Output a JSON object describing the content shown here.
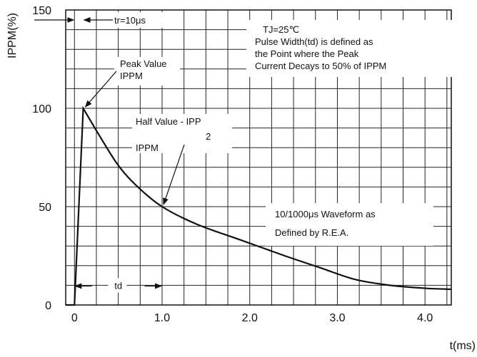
{
  "chart_data": {
    "type": "line",
    "title": "",
    "xlabel": "t(ms)",
    "ylabel": "IPPM(%)",
    "xlim": [
      -0.1,
      4.3
    ],
    "ylim": [
      0,
      150
    ],
    "grid": true,
    "x_ticks": [
      {
        "value": 0,
        "label": "0"
      },
      {
        "value": 1,
        "label": "1.0"
      },
      {
        "value": 2,
        "label": "2.0"
      },
      {
        "value": 3,
        "label": "3.0"
      },
      {
        "value": 4,
        "label": "4.0"
      }
    ],
    "y_ticks": [
      {
        "value": 0,
        "label": "0"
      },
      {
        "value": 50,
        "label": "50"
      },
      {
        "value": 100,
        "label": "100"
      },
      {
        "value": 150,
        "label": "150"
      }
    ],
    "series": [
      {
        "name": "",
        "x": [
          -0.1,
          0,
          0.1,
          0.3,
          0.5,
          0.7,
          1.0,
          1.4,
          1.9,
          2.4,
          2.8,
          3.2,
          3.6,
          4.0,
          4.3
        ],
        "y": [
          0,
          0,
          100,
          85,
          71,
          61,
          50,
          41,
          33,
          25,
          19,
          13,
          10,
          8.5,
          8
        ]
      }
    ],
    "annotations": {
      "tr": "tr=10μs",
      "conditions": [
        "TJ=25℃",
        "Pulse Width(td) is defined as",
        "the Point where the Peak",
        "Current Decays to 50% of IPPM"
      ],
      "peak": [
        "Peak Value",
        "IPPM"
      ],
      "half": [
        "Half Value - IPP",
        "2",
        "IPPM"
      ],
      "waveform": [
        "10/1000μs Waveform as",
        "Defined by R.E.A."
      ],
      "td": "td"
    }
  }
}
